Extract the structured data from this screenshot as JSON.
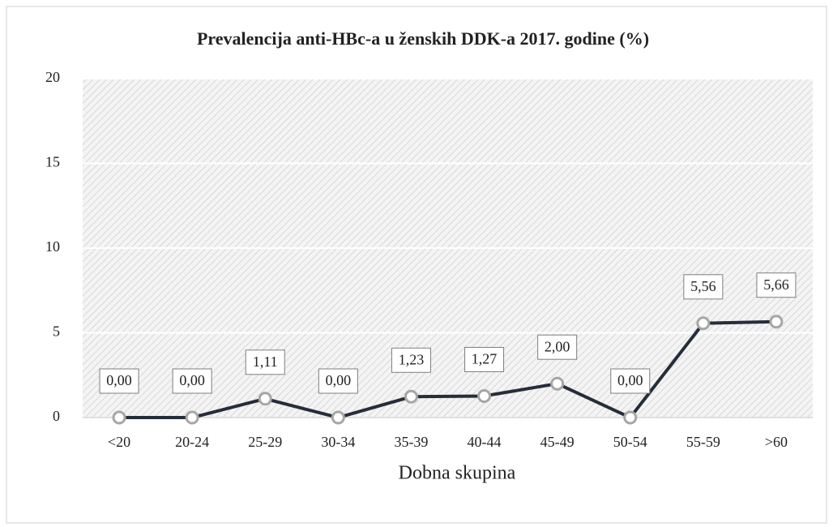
{
  "chart_data": {
    "type": "line",
    "title": "Prevalencija anti-HBc-a u ženskih  DDK-a 2017. godine (%)",
    "x_label": "Dobna skupina",
    "categories": [
      "<20",
      "20-24",
      "25-29",
      "30-34",
      "35-39",
      "40-44",
      "45-49",
      "50-54",
      "55-59",
      ">60"
    ],
    "values": [
      0,
      0,
      1.11,
      0,
      1.23,
      1.27,
      2,
      0,
      5.56,
      5.66
    ],
    "value_labels": [
      "0,00",
      "0,00",
      "1,11",
      "0,00",
      "1,23",
      "1,27",
      "2,00",
      "0,00",
      "5,56",
      "5,66"
    ],
    "color": "#262d3a",
    "ylim": [
      0,
      20
    ],
    "yticks": [
      0,
      5,
      10,
      15,
      20
    ],
    "grid": true
  }
}
